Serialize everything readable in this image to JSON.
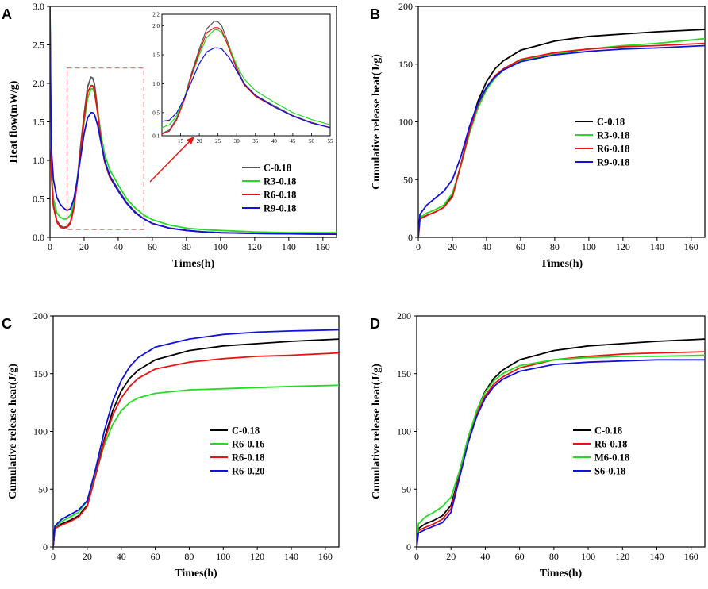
{
  "chart_data": [
    {
      "panel": "A",
      "type": "line",
      "xlabel": "Times(h)",
      "ylabel": "Heat flow(mW/g)",
      "xlim": [
        0,
        168
      ],
      "ylim": [
        0,
        3.0
      ],
      "xticks": [
        "0",
        "20",
        "40",
        "60",
        "80",
        "100",
        "120",
        "140",
        "160"
      ],
      "yticks": [
        "0.0",
        "0.5",
        "1.0",
        "1.5",
        "2.0",
        "2.5",
        "3.0"
      ],
      "legend": [
        "C-0.18",
        "R3-0.18",
        "R6-0.18",
        "R9-0.18"
      ],
      "series": [
        {
          "name": "C-0.18",
          "color": "#555555",
          "x": [
            0,
            0.5,
            1,
            2,
            4,
            6,
            8,
            10,
            12,
            14,
            16,
            18,
            20,
            22,
            24,
            25,
            26,
            28,
            30,
            32,
            35,
            40,
            45,
            50,
            55,
            60,
            70,
            80,
            90,
            100,
            120,
            140,
            168
          ],
          "y": [
            2.9,
            1.3,
            0.8,
            0.42,
            0.22,
            0.15,
            0.13,
            0.14,
            0.2,
            0.4,
            0.75,
            1.2,
            1.6,
            1.95,
            2.08,
            2.07,
            2.0,
            1.65,
            1.28,
            1.0,
            0.8,
            0.62,
            0.45,
            0.33,
            0.24,
            0.18,
            0.12,
            0.09,
            0.07,
            0.06,
            0.05,
            0.045,
            0.04
          ]
        },
        {
          "name": "R3-0.18",
          "color": "#22dd22",
          "x": [
            0,
            0.5,
            1,
            2,
            4,
            6,
            8,
            10,
            12,
            14,
            16,
            18,
            20,
            22,
            24,
            25,
            26,
            28,
            30,
            32,
            35,
            40,
            45,
            50,
            55,
            60,
            70,
            80,
            90,
            100,
            120,
            140,
            168
          ],
          "y": [
            3.0,
            1.2,
            0.8,
            0.5,
            0.32,
            0.26,
            0.24,
            0.24,
            0.29,
            0.45,
            0.75,
            1.15,
            1.5,
            1.8,
            1.93,
            1.93,
            1.88,
            1.63,
            1.32,
            1.08,
            0.88,
            0.68,
            0.5,
            0.38,
            0.29,
            0.23,
            0.16,
            0.12,
            0.1,
            0.09,
            0.07,
            0.06,
            0.06
          ]
        },
        {
          "name": "R6-0.18",
          "color": "#ee1111",
          "x": [
            0,
            0.5,
            1,
            2,
            4,
            6,
            8,
            10,
            12,
            14,
            16,
            18,
            20,
            22,
            24,
            25,
            26,
            28,
            30,
            32,
            35,
            40,
            45,
            50,
            55,
            60,
            70,
            80,
            90,
            100,
            120,
            140,
            168
          ],
          "y": [
            2.9,
            1.2,
            0.75,
            0.4,
            0.2,
            0.13,
            0.12,
            0.13,
            0.18,
            0.38,
            0.72,
            1.15,
            1.55,
            1.88,
            1.97,
            1.97,
            1.92,
            1.6,
            1.25,
            0.98,
            0.78,
            0.6,
            0.44,
            0.32,
            0.24,
            0.18,
            0.12,
            0.09,
            0.07,
            0.06,
            0.05,
            0.045,
            0.04
          ]
        },
        {
          "name": "R9-0.18",
          "color": "#1111dd",
          "x": [
            0,
            0.5,
            1,
            2,
            4,
            6,
            8,
            10,
            12,
            14,
            16,
            18,
            20,
            22,
            24,
            25,
            26,
            28,
            30,
            32,
            35,
            40,
            45,
            50,
            55,
            60,
            70,
            80,
            90,
            100,
            120,
            140,
            168
          ],
          "y": [
            3.0,
            1.6,
            1.1,
            0.75,
            0.52,
            0.43,
            0.38,
            0.35,
            0.37,
            0.5,
            0.75,
            1.05,
            1.35,
            1.55,
            1.62,
            1.62,
            1.6,
            1.45,
            1.22,
            1.0,
            0.8,
            0.6,
            0.44,
            0.32,
            0.24,
            0.18,
            0.12,
            0.09,
            0.07,
            0.06,
            0.05,
            0.045,
            0.04
          ]
        }
      ],
      "inset": {
        "xlim": [
          10,
          55
        ],
        "ylim": [
          0.1,
          2.2
        ],
        "xticks": [
          "15",
          "20",
          "25",
          "30",
          "35",
          "40",
          "45",
          "50",
          "55"
        ],
        "yticks": [
          "0.1",
          "0.5",
          "1.0",
          "1.5",
          "2.0",
          "2.2"
        ]
      }
    },
    {
      "panel": "B",
      "type": "line",
      "xlabel": "Times(h)",
      "ylabel": "Cumulative release heat(J/g)",
      "xlim": [
        0,
        168
      ],
      "ylim": [
        0,
        200
      ],
      "xticks": [
        "0",
        "20",
        "40",
        "60",
        "80",
        "100",
        "120",
        "140",
        "160"
      ],
      "yticks": [
        "0",
        "50",
        "100",
        "150",
        "200"
      ],
      "legend": [
        "C-0.18",
        "R3-0.18",
        "R6-0.18",
        "R9-0.18"
      ],
      "series": [
        {
          "name": "C-0.18",
          "color": "#000000",
          "x": [
            0,
            1,
            5,
            10,
            15,
            20,
            25,
            30,
            35,
            40,
            45,
            50,
            60,
            80,
            100,
            120,
            140,
            168
          ],
          "y": [
            0,
            16,
            19,
            22,
            26,
            36,
            63,
            93,
            118,
            135,
            146,
            153,
            162,
            170,
            174,
            176,
            178,
            180
          ]
        },
        {
          "name": "R3-0.18",
          "color": "#22dd22",
          "x": [
            0,
            1,
            5,
            10,
            15,
            20,
            25,
            30,
            35,
            40,
            45,
            50,
            60,
            80,
            100,
            120,
            140,
            168
          ],
          "y": [
            0,
            17,
            21,
            24,
            28,
            38,
            62,
            90,
            112,
            128,
            138,
            145,
            153,
            159,
            163,
            166,
            168,
            172
          ]
        },
        {
          "name": "R6-0.18",
          "color": "#ee1111",
          "x": [
            0,
            1,
            5,
            10,
            15,
            20,
            25,
            30,
            35,
            40,
            45,
            50,
            60,
            80,
            100,
            120,
            140,
            168
          ],
          "y": [
            0,
            16,
            19,
            22,
            26,
            35,
            63,
            92,
            115,
            130,
            140,
            146,
            154,
            160,
            163,
            165,
            166,
            168
          ]
        },
        {
          "name": "R9-0.18",
          "color": "#1111dd",
          "x": [
            0,
            1,
            5,
            10,
            15,
            20,
            25,
            30,
            35,
            40,
            45,
            50,
            60,
            80,
            100,
            120,
            140,
            168
          ],
          "y": [
            0,
            20,
            28,
            34,
            40,
            50,
            70,
            96,
            116,
            130,
            139,
            145,
            152,
            158,
            161,
            163,
            164,
            166
          ]
        }
      ]
    },
    {
      "panel": "C",
      "type": "line",
      "xlabel": "Times(h)",
      "ylabel": "Cumulative release heat(J/g)",
      "xlim": [
        0,
        168
      ],
      "ylim": [
        0,
        200
      ],
      "xticks": [
        "0",
        "20",
        "40",
        "60",
        "80",
        "100",
        "120",
        "140",
        "160"
      ],
      "yticks": [
        "0",
        "50",
        "100",
        "150",
        "200"
      ],
      "legend": [
        "C-0.18",
        "R6-0.16",
        "R6-0.18",
        "R6-0.20"
      ],
      "series": [
        {
          "name": "C-0.18",
          "color": "#000000",
          "x": [
            0,
            1,
            5,
            10,
            15,
            20,
            25,
            30,
            35,
            40,
            45,
            50,
            60,
            80,
            100,
            120,
            140,
            168
          ],
          "y": [
            0,
            16,
            20,
            23,
            27,
            36,
            63,
            93,
            118,
            135,
            146,
            153,
            162,
            170,
            174,
            176,
            178,
            180
          ]
        },
        {
          "name": "R6-0.16",
          "color": "#22dd22",
          "x": [
            0,
            1,
            5,
            10,
            15,
            20,
            25,
            30,
            35,
            40,
            45,
            50,
            60,
            80,
            100,
            120,
            140,
            168
          ],
          "y": [
            0,
            17,
            22,
            26,
            30,
            40,
            63,
            88,
            106,
            118,
            125,
            129,
            133,
            136,
            137,
            138,
            139,
            140
          ]
        },
        {
          "name": "R6-0.18",
          "color": "#ee1111",
          "x": [
            0,
            1,
            5,
            10,
            15,
            20,
            25,
            30,
            35,
            40,
            45,
            50,
            60,
            80,
            100,
            120,
            140,
            168
          ],
          "y": [
            0,
            16,
            19,
            22,
            26,
            35,
            62,
            91,
            114,
            129,
            139,
            146,
            154,
            160,
            163,
            165,
            166,
            168
          ]
        },
        {
          "name": "R6-0.20",
          "color": "#1111dd",
          "x": [
            0,
            1,
            5,
            10,
            15,
            20,
            25,
            30,
            35,
            40,
            45,
            50,
            60,
            80,
            100,
            120,
            140,
            168
          ],
          "y": [
            0,
            18,
            24,
            28,
            32,
            40,
            68,
            100,
            126,
            144,
            156,
            164,
            173,
            180,
            184,
            186,
            187,
            188
          ]
        }
      ]
    },
    {
      "panel": "D",
      "type": "line",
      "xlabel": "Times(h)",
      "ylabel": "Cumulative release heat(J/g)",
      "xlim": [
        0,
        168
      ],
      "ylim": [
        0,
        200
      ],
      "xticks": [
        "0",
        "20",
        "40",
        "60",
        "80",
        "100",
        "120",
        "140",
        "160"
      ],
      "yticks": [
        "0",
        "50",
        "100",
        "150",
        "200"
      ],
      "legend": [
        "C-0.18",
        "R6-0.18",
        "M6-0.18",
        "S6-0.18"
      ],
      "series": [
        {
          "name": "C-0.18",
          "color": "#000000",
          "x": [
            0,
            1,
            5,
            10,
            15,
            20,
            25,
            30,
            35,
            40,
            45,
            50,
            60,
            80,
            100,
            120,
            140,
            168
          ],
          "y": [
            0,
            16,
            20,
            23,
            27,
            36,
            63,
            93,
            118,
            135,
            146,
            153,
            162,
            170,
            174,
            176,
            178,
            180
          ]
        },
        {
          "name": "R6-0.18",
          "color": "#ee1111",
          "x": [
            0,
            1,
            5,
            10,
            15,
            20,
            25,
            30,
            35,
            40,
            45,
            50,
            60,
            80,
            100,
            120,
            140,
            168
          ],
          "y": [
            0,
            14,
            17,
            20,
            24,
            33,
            62,
            92,
            115,
            131,
            141,
            147,
            155,
            162,
            165,
            167,
            168,
            169
          ]
        },
        {
          "name": "M6-0.18",
          "color": "#22dd22",
          "x": [
            0,
            1,
            5,
            10,
            15,
            20,
            25,
            30,
            35,
            40,
            45,
            50,
            60,
            80,
            100,
            120,
            140,
            168
          ],
          "y": [
            0,
            20,
            26,
            30,
            35,
            43,
            66,
            95,
            118,
            134,
            144,
            150,
            157,
            162,
            164,
            165,
            165,
            166
          ]
        },
        {
          "name": "S6-0.18",
          "color": "#1111dd",
          "x": [
            0,
            1,
            5,
            10,
            15,
            20,
            25,
            30,
            35,
            40,
            45,
            50,
            60,
            80,
            100,
            120,
            140,
            168
          ],
          "y": [
            0,
            12,
            15,
            18,
            21,
            30,
            60,
            90,
            113,
            129,
            139,
            145,
            152,
            158,
            160,
            161,
            162,
            162
          ]
        }
      ]
    }
  ]
}
